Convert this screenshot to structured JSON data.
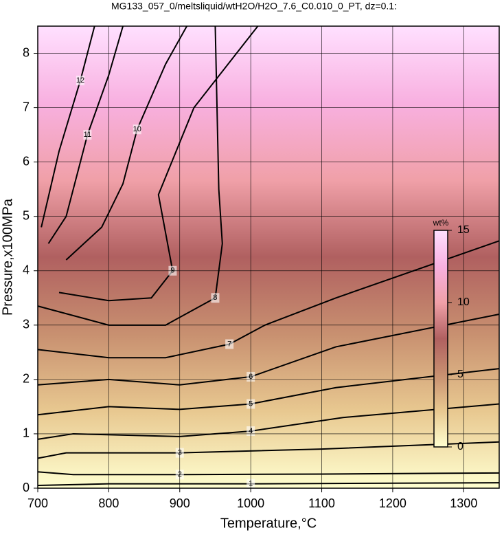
{
  "chart_data": {
    "type": "contour",
    "title": "MG133_057_0/meltsliquid/wtH2O/H2O_7.6_C0.010_0_PT, dz=0.1:",
    "x_label": "Temperature,°C",
    "y_label": "Pressure,x100MPa",
    "xlim": [
      700,
      1350
    ],
    "ylim": [
      0,
      8.5
    ],
    "xticks": [
      700,
      800,
      900,
      1000,
      1100,
      1200,
      1300
    ],
    "yticks": [
      0,
      1,
      2,
      3,
      4,
      5,
      6,
      7,
      8
    ],
    "grid": true,
    "line_color": "#000000",
    "contours": [
      {
        "level": 1,
        "x": [
          700,
          800,
          1000,
          1350
        ],
        "y": [
          0.05,
          0.08,
          0.08,
          0.1
        ]
      },
      {
        "level": 2,
        "x": [
          700,
          750,
          900,
          1100,
          1350
        ],
        "y": [
          0.3,
          0.25,
          0.25,
          0.26,
          0.28
        ]
      },
      {
        "level": 3,
        "x": [
          700,
          740,
          900,
          1100,
          1350
        ],
        "y": [
          0.55,
          0.65,
          0.65,
          0.72,
          0.85
        ]
      },
      {
        "level": 4,
        "x": [
          700,
          750,
          900,
          1000,
          1130,
          1350
        ],
        "y": [
          0.9,
          1.0,
          0.95,
          1.05,
          1.3,
          1.55
        ]
      },
      {
        "level": 5,
        "x": [
          700,
          800,
          900,
          1000,
          1120,
          1350
        ],
        "y": [
          1.35,
          1.5,
          1.45,
          1.55,
          1.85,
          2.2
        ]
      },
      {
        "level": 6,
        "x": [
          700,
          800,
          900,
          1000,
          1120,
          1350
        ],
        "y": [
          1.9,
          2.0,
          1.9,
          2.05,
          2.6,
          3.2
        ]
      },
      {
        "level": 7,
        "x": [
          700,
          800,
          880,
          970,
          1020,
          1120,
          1350
        ],
        "y": [
          2.55,
          2.4,
          2.4,
          2.65,
          3.0,
          3.5,
          4.55
        ]
      },
      {
        "level": 8,
        "x": [
          700,
          800,
          880,
          950,
          960,
          955,
          950
        ],
        "y": [
          3.35,
          3.0,
          3.0,
          3.5,
          4.5,
          5.5,
          8.5
        ]
      },
      {
        "level": 9,
        "x": [
          730,
          800,
          860,
          890,
          870,
          920,
          1010
        ],
        "y": [
          3.6,
          3.45,
          3.5,
          4.0,
          5.4,
          7.0,
          8.5
        ]
      },
      {
        "level": 10,
        "x": [
          740,
          790,
          820,
          840,
          880,
          910
        ],
        "y": [
          4.2,
          4.8,
          5.6,
          6.6,
          7.8,
          8.5
        ]
      },
      {
        "level": 11,
        "x": [
          715,
          740,
          770,
          800,
          820
        ],
        "y": [
          4.5,
          5.0,
          6.5,
          7.6,
          8.5
        ]
      },
      {
        "level": 12,
        "x": [
          705,
          730,
          760,
          780
        ],
        "y": [
          4.8,
          6.2,
          7.5,
          8.5
        ]
      }
    ],
    "colorbar": {
      "label": "wt%",
      "lim": [
        0,
        15
      ],
      "ticks": [
        0,
        5,
        10,
        15
      ],
      "colors": [
        "#ffffd0",
        "#e8c890",
        "#c89070",
        "#b06060",
        "#f0a0a8",
        "#f8b0e0",
        "#ffe0ff"
      ]
    }
  }
}
